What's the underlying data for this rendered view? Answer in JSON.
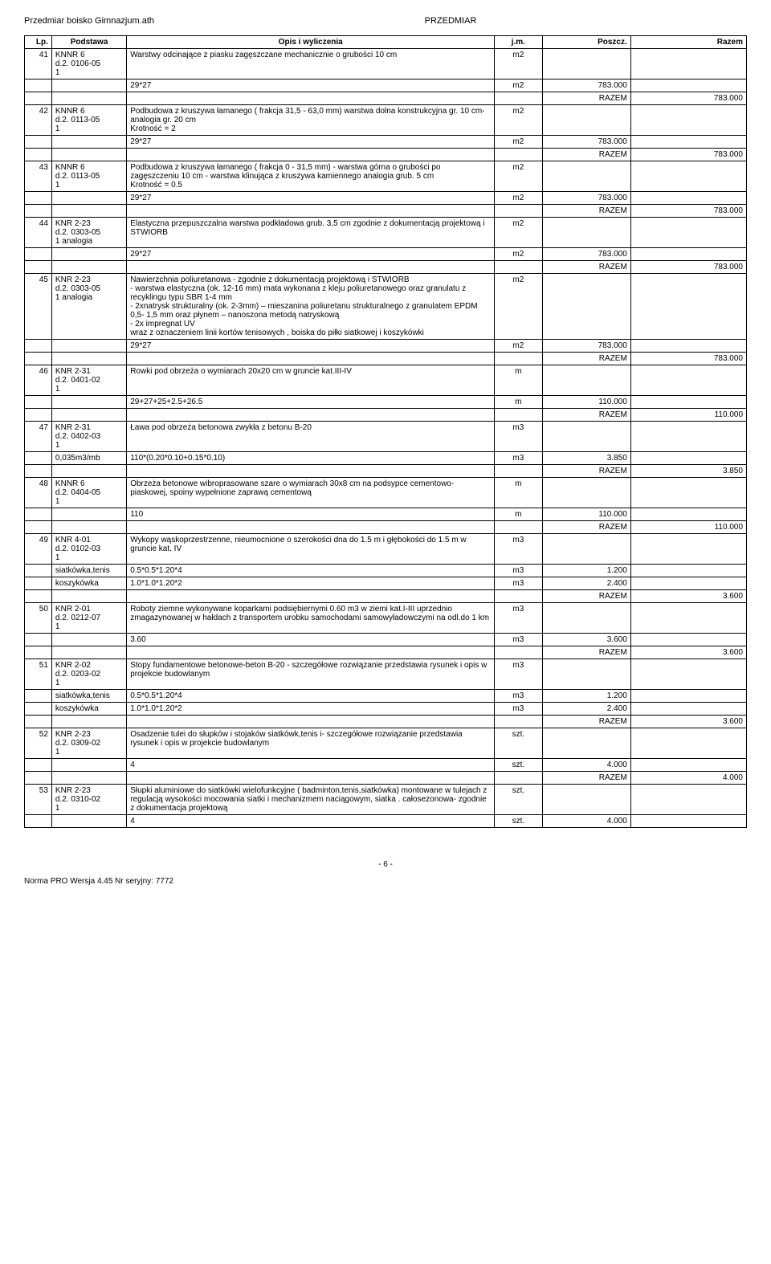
{
  "header": {
    "left": "Przedmiar boisko Gimnazjum.ath",
    "center": "PRZEDMIAR"
  },
  "columns": {
    "lp": "Lp.",
    "podstawa": "Podstawa",
    "opis": "Opis i wyliczenia",
    "jm": "j.m.",
    "poszcz": "Poszcz.",
    "razem": "Razem"
  },
  "razem_label": "RAZEM",
  "rows": [
    {
      "lp": "41",
      "kod": "KNNR 6",
      "d": "d.2.",
      "num": "0106-05",
      "sub": "1",
      "opis": "Warstwy odcinające z piasku zagęszczane mechanicznie o grubości 10 cm",
      "jm": "m2",
      "calc": "29*27",
      "calc_jm": "m2",
      "calc_val": "783.000",
      "razem": "783.000"
    },
    {
      "lp": "42",
      "kod": "KNNR 6",
      "d": "d.2.",
      "num": "0113-05",
      "sub": "1",
      "opis": "Podbudowa  z kruszywa  łamanego  ( frakcja 31,5 - 63,0 mm) warstwa dolna konstrukcyjna gr.  10 cm-analogia   gr.  20  cm",
      "extra": "Krotność = 2",
      "jm": "m2",
      "calc": "29*27",
      "calc_jm": "m2",
      "calc_val": "783.000",
      "razem": "783.000"
    },
    {
      "lp": "43",
      "kod": "KNNR 6",
      "d": "d.2.",
      "num": "0113-05",
      "sub": "1",
      "opis": "Podbudowa z kruszywa łamanego ( frakcja 0 - 31,5 mm) - warstwa górna o grubości po zagęszczeniu 10 cm - warstwa klinująca z kruszywa kamiennego analogia  grub. 5 cm",
      "extra": "Krotność = 0.5",
      "jm": "m2",
      "calc": "29*27",
      "calc_jm": "m2",
      "calc_val": "783.000",
      "razem": "783.000"
    },
    {
      "lp": "44",
      "kod": "KNR 2-23",
      "d": "d.2.",
      "num": "0303-05",
      "sub": "1 analogia",
      "opis": "Elastyczna przepuszczalna warstwa podkładowa grub.  3,5 cm  zgodnie  z  dokumentacją  projektową i STWIORB",
      "jm": "m2",
      "calc": "29*27",
      "calc_jm": "m2",
      "calc_val": "783.000",
      "razem": "783.000"
    },
    {
      "lp": "45",
      "kod": "KNR 2-23",
      "d": "d.2.",
      "num": "0303-05",
      "sub": "1 analogia",
      "opis": "Nawierzchnia  poliuretanowa - zgodnie  z  dokumentacją  projektową i STWIORB\n- warstwa elastyczna (ok. 12-16 mm) mata wykonana z kleju poliuretanowego oraz granulatu z recyklingu typu SBR 1-4 mm\n- 2xnatrysk strukturalny (ok. 2-3mm) – mieszanina poliuretanu strukturalnego z granulatem EPDM 0,5- 1,5 mm oraz płynem – nanoszona metodą natryskową\n- 2x impregnat UV\nwraz z oznaczeniem linii kortów tenisowych , boiska do piłki siatkowej i koszykówki",
      "jm": "m2",
      "calc": "29*27",
      "calc_jm": "m2",
      "calc_val": "783.000",
      "razem": "783.000"
    },
    {
      "lp": "46",
      "kod": "KNR 2-31",
      "d": "d.2.",
      "num": "0401-02",
      "sub": "1",
      "opis": "Rowki pod obrzeża o  wymiarach 20x20 cm w gruncie kat.III-IV",
      "jm": "m",
      "calc": "29+27+25+2.5+26.5",
      "calc_jm": "m",
      "calc_val": "110.000",
      "razem": "110.000"
    },
    {
      "lp": "47",
      "kod": "KNR 2-31",
      "d": "d.2.",
      "num": "0402-03",
      "sub": "1",
      "opis": "Ława pod obrzeża betonowa zwykła z betonu B-20",
      "jm": "m3",
      "calc_prefix": "0,035m3/mb",
      "calc": "110*(0.20*0.10+0.15*0.10)",
      "calc_jm": "m3",
      "calc_val": "3.850",
      "razem": "3.850"
    },
    {
      "lp": "48",
      "kod": "KNNR 6",
      "d": "d.2.",
      "num": "0404-05",
      "sub": "1",
      "opis": "Obrzeża betonowe wibroprasowane szare o wymiarach 30x8 cm na podsypce cementowo-piaskowej, spoiny wypełnione zaprawą cementową",
      "jm": "m",
      "calc": "110",
      "calc_jm": "m",
      "calc_val": "110.000",
      "razem": "110.000"
    },
    {
      "lp": "49",
      "kod": "KNR 4-01",
      "d": "d.2.",
      "num": "0102-03",
      "sub": "1",
      "opis": "Wykopy wąskoprzestrzenne, nieumocnione o szerokości dna do 1.5 m i głębokości do 1.5 m w gruncie kat. IV",
      "jm": "m3",
      "multi": [
        {
          "label": "siatkówka,tenis",
          "calc": "0.5*0.5*1.20*4",
          "jm": "m3",
          "val": "1.200"
        },
        {
          "label": "koszykówka",
          "calc": "1.0*1.0*1.20*2",
          "jm": "m3",
          "val": "2.400"
        }
      ],
      "razem": "3.600"
    },
    {
      "lp": "50",
      "kod": "KNR 2-01",
      "d": "d.2.",
      "num": "0212-07",
      "sub": "1",
      "opis": "Roboty ziemne wykonywane koparkami podsiębiernymi 0.60 m3 w ziemi kat.I-III uprzednio zmagazynowanej w hałdach z transportem urobku samochodami samowyładowczymi na odl.do 1 km",
      "jm": "m3",
      "calc": "3.60",
      "calc_jm": "m3",
      "calc_val": "3.600",
      "razem": "3.600"
    },
    {
      "lp": "51",
      "kod": "KNR 2-02",
      "d": "d.2.",
      "num": "0203-02",
      "sub": "1",
      "opis": "Stopy fundamentowe betonowe-beton  B-20 -  szczegółowe rozwiązanie przedstawia  rysunek  i opis w  projekcie  budowlanym",
      "jm": "m3",
      "multi": [
        {
          "label": "siatkówka,tenis",
          "calc": "0.5*0.5*1.20*4",
          "jm": "m3",
          "val": "1.200"
        },
        {
          "label": "koszykówka",
          "calc": "1.0*1.0*1.20*2",
          "jm": "m3",
          "val": "2.400"
        }
      ],
      "razem": "3.600"
    },
    {
      "lp": "52",
      "kod": "KNR 2-23",
      "d": "d.2.",
      "num": "0309-02",
      "sub": "1",
      "opis": "Osadzenie tulei do słupków i stojaków siatkówk,tenis i-  szczegółowe rozwiązanie przedstawia  rysunek  i opis w  projekcie  budowlanym",
      "jm": "szt.",
      "calc": "4",
      "calc_jm": "szt.",
      "calc_val": "4.000",
      "razem": "4.000"
    },
    {
      "lp": "53",
      "kod": "KNR 2-23",
      "d": "d.2.",
      "num": "0310-02",
      "sub": "1",
      "opis": "Słupki aluminiowe do siatkówki wielofunkcyjne ( badminton,tenis,siatkówka) montowane w tulejach z regulacją wysokości mocowania siatki i mechanizmem naciągowym, siatka . całosezonowa- zgodnie  z dokumentacja projektową",
      "jm": "szt.",
      "calc": "4",
      "calc_jm": "szt.",
      "calc_val": "4.000",
      "razem": ""
    }
  ],
  "footer": {
    "page": "- 6 -",
    "generator": "Norma PRO Wersja 4.45 Nr seryjny: 7772"
  }
}
